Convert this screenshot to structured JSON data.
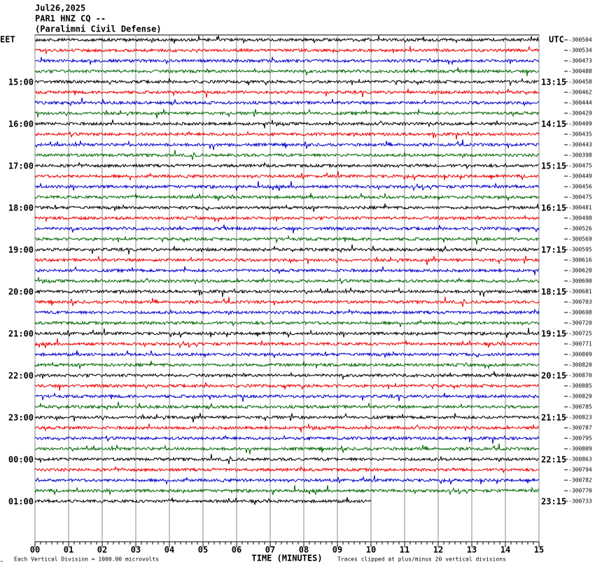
{
  "header": {
    "date": "Jul26,2025",
    "station": "PAR1 HNZ CQ --",
    "location": "(Paralimni Civil Defense)"
  },
  "left_axis": {
    "title": "EET",
    "labels": [
      "15:00",
      "16:00",
      "17:00",
      "18:00",
      "19:00",
      "20:00",
      "21:00",
      "22:00",
      "23:00",
      "00:00",
      "01:00"
    ]
  },
  "right_axis": {
    "title": "UTC",
    "labels": [
      "13:15",
      "14:15",
      "15:15",
      "16:15",
      "17:15",
      "18:15",
      "19:15",
      "20:15",
      "21:15",
      "22:15",
      "23:15"
    ]
  },
  "trace_offsets": [
    "-300504",
    "-300534",
    "-300473",
    "-300488",
    "-300458",
    "-300462",
    "-300444",
    "-300429",
    "-300409",
    "-300435",
    "-300443",
    "-300398",
    "-300475",
    "-300449",
    "-300456",
    "-300475",
    "-300481",
    "-300498",
    "-300526",
    "-300569",
    "-300595",
    "-300616",
    "-300628",
    "-300690",
    "-300681",
    "-300703",
    "-300698",
    "-300720",
    "-300725",
    "-300771",
    "-300809",
    "-300820",
    "-300870",
    "-300885",
    "-300829",
    "-300785",
    "-300823",
    "-300787",
    "-300795",
    "-300809",
    "-300863",
    "-300794",
    "-300782",
    "-300770",
    "-300733"
  ],
  "x_axis": {
    "title": "TIME (MINUTES)",
    "ticks": [
      "00",
      "01",
      "02",
      "03",
      "04",
      "05",
      "06",
      "07",
      "08",
      "09",
      "10",
      "11",
      "12",
      "13",
      "14",
      "15"
    ]
  },
  "footer": {
    "scale_note": "Each Vertical Division = 1000.00 microvolts",
    "clip_note": "Traces clipped at plus/minus 20 vertical divisions"
  }
}
